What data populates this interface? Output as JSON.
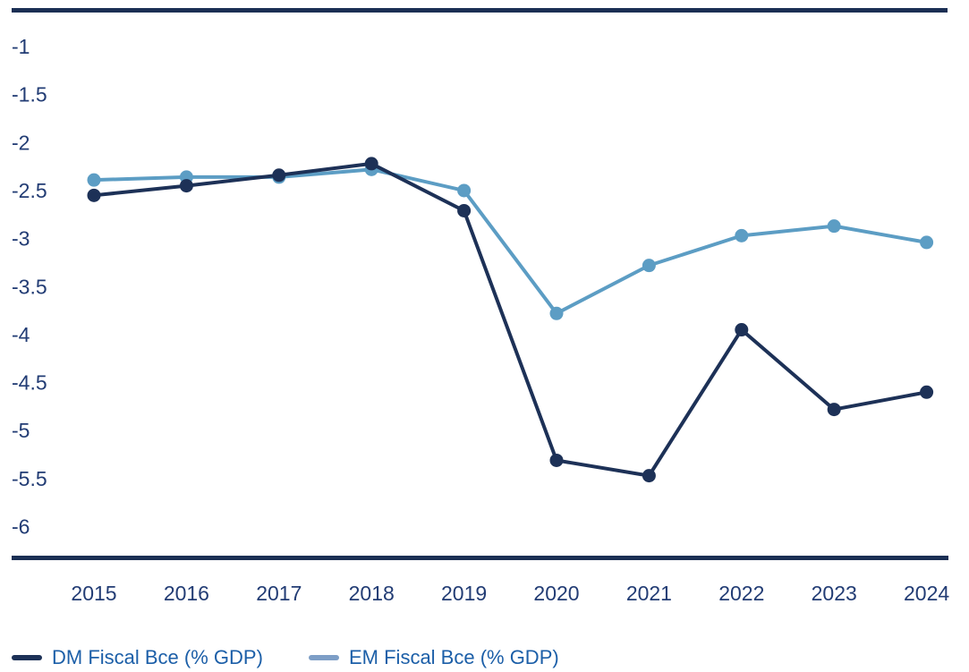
{
  "chart_data": {
    "type": "line",
    "x": [
      2015,
      2016,
      2017,
      2018,
      2019,
      2020,
      2021,
      2022,
      2023,
      2024
    ],
    "series": [
      {
        "name": "DM Fiscal Bce (% GDP)",
        "color": "#1d3157",
        "swatch_color": "#1d3157",
        "values": [
          -2.55,
          -2.45,
          -2.34,
          -2.22,
          -2.71,
          -5.31,
          -5.47,
          -3.95,
          -4.78,
          -4.6
        ]
      },
      {
        "name": "EM Fiscal Bce (% GDP)",
        "color": "#5c9dc4",
        "swatch_color": "#7d9ec6",
        "values": [
          -2.39,
          -2.36,
          -2.36,
          -2.28,
          -2.5,
          -3.78,
          -3.28,
          -2.97,
          -2.87,
          -3.04
        ]
      }
    ],
    "title": "",
    "xlabel": "",
    "ylabel": "",
    "yticks": [
      -1,
      -1.5,
      -2,
      -2.5,
      -3,
      -3.5,
      -4,
      -4.5,
      -5,
      -5.5,
      -6
    ],
    "ylim": [
      -6.35,
      -0.6
    ],
    "grid": false,
    "legend_position": "bottom-left",
    "axis_color": "#1b2f54",
    "tick_label_color": "#223c74",
    "marker_radius": 7.5,
    "line_width": 4
  }
}
